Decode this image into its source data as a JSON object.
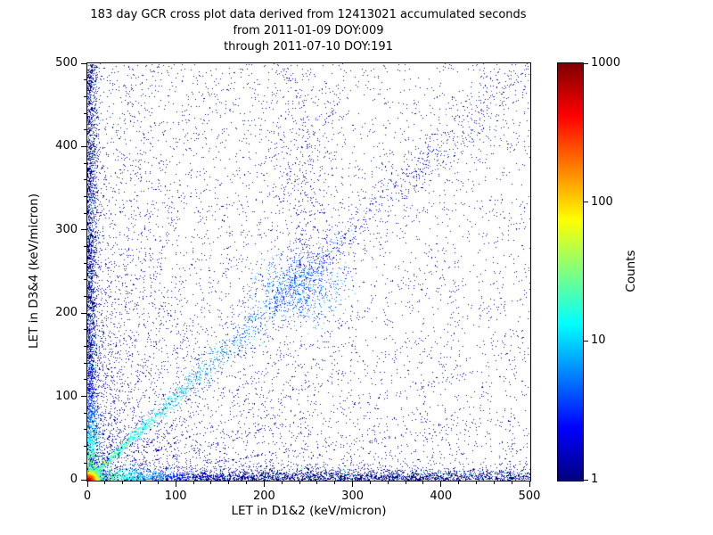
{
  "title": {
    "line1": "183 day GCR cross plot data derived from 12413021 accumulated seconds",
    "line2": "from 2011-01-09 DOY:009",
    "line3": "through 2011-07-10 DOY:191"
  },
  "chart_data": {
    "type": "heatmap",
    "subtype": "2d-histogram scatter (log-color density plot)",
    "title": "183 day GCR cross plot data derived from 12413021 accumulated seconds from 2011-01-09 DOY:009 through 2011-07-10 DOY:191",
    "xlabel": "LET in D1&2 (keV/micron)",
    "ylabel": "LET in D3&4 (keV/micron)",
    "xlim": [
      0,
      500
    ],
    "ylim": [
      0,
      500
    ],
    "xticks": [
      0,
      100,
      200,
      300,
      400,
      500
    ],
    "yticks": [
      0,
      100,
      200,
      300,
      400,
      500
    ],
    "minor_tick_step": 20,
    "grid": false,
    "colorbar": {
      "label": "Counts",
      "scale": "log",
      "min": 1,
      "max": 1000,
      "ticks": [
        1,
        10,
        100,
        1000
      ],
      "colormap": "jet",
      "position": "right"
    },
    "accumulated_seconds": 12413021,
    "period_days": 183,
    "start_date": "2011-01-09",
    "start_doy": "009",
    "end_date": "2011-07-10",
    "end_doy": "191",
    "description": "Very dense hot (red/orange/yellow, ~1000 counts) core at the origin; bright bands of high counts hugging both axes fading from yellow-green to blue with distance; a correlated diagonal band y=x of blue-cyan points with a denser blue cluster near (240,230) and steep streaks fanning up from it; many faint dark-blue rays radiating from the origin at various slopes; sparse dark-blue (1 count) background scatter concentrated toward low LET values.",
    "render_features": [
      {
        "kind": "background",
        "n": 5200,
        "bias": 1.9,
        "value": 1
      },
      {
        "kind": "uniform",
        "n": 1300,
        "value": 1
      },
      {
        "kind": "rays",
        "slopes": [
          0.15,
          0.3,
          0.45,
          0.65,
          0.85,
          1.2,
          1.6,
          2.2,
          3.2,
          4.5,
          6.5,
          9.5
        ],
        "n_per": 140,
        "value": 1.5
      },
      {
        "kind": "plume",
        "cx": 245,
        "cy": 250,
        "n": 420,
        "spread": 26,
        "value": 1.4
      },
      {
        "kind": "diagonal",
        "n": 2300,
        "bias": 1.7,
        "value_scale": 25,
        "decay": 90
      },
      {
        "kind": "cluster",
        "cx": 240,
        "cy": 232,
        "sigma": 26,
        "n": 650,
        "vmin": 2,
        "vmax": 10
      },
      {
        "kind": "band_h",
        "n": 3000,
        "width": 6.5,
        "bias": 1.25,
        "value_scale": 60,
        "decay": 28
      },
      {
        "kind": "band_v",
        "n": 2600,
        "width": 5.5,
        "bias": 1.2,
        "value_scale": 60,
        "decay": 28
      },
      {
        "kind": "hotspot",
        "n": 2300,
        "mean_r": 4.5,
        "peak": 1000,
        "decay": 3.5
      }
    ],
    "seed": 42
  }
}
